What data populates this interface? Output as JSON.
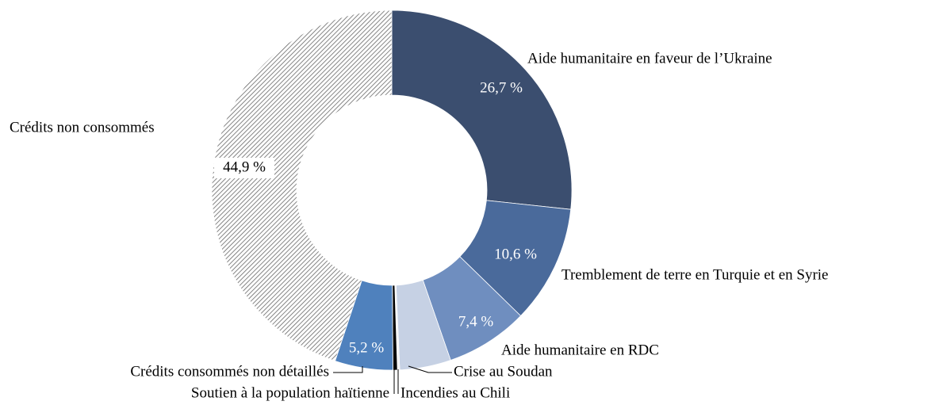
{
  "chart_data": {
    "type": "donut",
    "categories": [
      "Aide humanitaire en faveur de l’Ukraine",
      "Tremblement de terre en Turquie et en Syrie",
      "Aide humanitaire en RDC",
      "Crise au Soudan",
      "Incendies au Chili",
      "Soutien à la population haïtienne",
      "Crédits consommés non détaillés",
      "Crédits non consommés"
    ],
    "values": [
      26.7,
      10.6,
      7.4,
      4.6,
      0.2,
      0.4,
      5.2,
      44.9
    ],
    "value_labels": [
      "26,7 %",
      "10,6 %",
      "7,4 %",
      null,
      null,
      null,
      "5,2 %",
      "44,9 %"
    ],
    "colors": [
      "#3b4e6f",
      "#4a6a9b",
      "#6f8ebf",
      "#c6d1e4",
      "#f2f2f2",
      "#000000",
      "#4f81bd",
      "hatch"
    ]
  }
}
